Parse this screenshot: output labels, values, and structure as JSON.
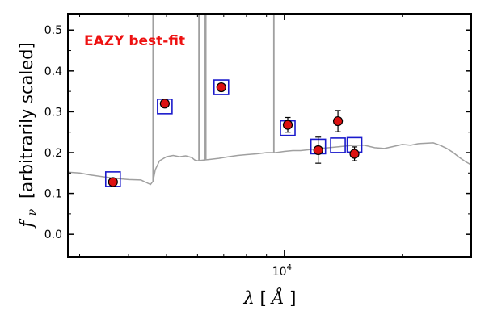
{
  "chart_data": {
    "type": "scatter",
    "title": "",
    "annotation": "EAZY best-fit",
    "annotation_color": "#ee1111",
    "xlabel": "λ [Å]",
    "xlabel_symbol": "λ",
    "xlabel_unit": "Å",
    "ylabel": "f_ν [arbitrarily scaled]",
    "ylabel_symbol": "f",
    "ylabel_subscript": "ν",
    "ylabel_text": "[arbitrarily scaled]",
    "xscale": "log",
    "xlim": [
      2800,
      30000
    ],
    "ylim": [
      -0.055,
      0.54
    ],
    "x_ticks": [
      {
        "value": 10000,
        "base": "10",
        "exp": "4"
      }
    ],
    "y_ticks": [
      0.0,
      0.1,
      0.2,
      0.3,
      0.4,
      0.5
    ],
    "y_tick_labels": [
      "0.0",
      "0.1",
      "0.2",
      "0.3",
      "0.4",
      "0.5"
    ],
    "grid": false,
    "colors": {
      "observed": "#dd1111",
      "model_box": "#1a1acc",
      "template": "#a0a0a0"
    },
    "series": [
      {
        "name": "template",
        "kind": "line",
        "x": [
          2800,
          3000,
          3200,
          3500,
          3700,
          4000,
          4300,
          4550,
          4620,
          4680,
          4800,
          5000,
          5200,
          5400,
          5600,
          5800,
          5900,
          6000,
          6400,
          6800,
          7200,
          7600,
          8000,
          8500,
          9000,
          9500,
          10000,
          10500,
          11000,
          11500,
          12000,
          13000,
          14000,
          15000,
          16000,
          17000,
          18000,
          19000,
          20000,
          21000,
          22000,
          23000,
          24000,
          25000,
          26000,
          27000,
          28000,
          29000,
          30000
        ],
        "y": [
          0.152,
          0.15,
          0.145,
          0.14,
          0.137,
          0.134,
          0.133,
          0.122,
          0.13,
          0.158,
          0.18,
          0.19,
          0.193,
          0.19,
          0.192,
          0.188,
          0.182,
          0.18,
          0.183,
          0.186,
          0.19,
          0.193,
          0.195,
          0.197,
          0.2,
          0.2,
          0.203,
          0.205,
          0.205,
          0.207,
          0.209,
          0.212,
          0.215,
          0.218,
          0.218,
          0.212,
          0.21,
          0.215,
          0.22,
          0.218,
          0.222,
          0.223,
          0.224,
          0.218,
          0.21,
          0.2,
          0.188,
          0.178,
          0.17
        ]
      },
      {
        "name": "emission_lines",
        "kind": "spikes",
        "lines": [
          {
            "x": 4620,
            "peak": 0.54
          },
          {
            "x": 6050,
            "peak": 0.54
          },
          {
            "x": 6250,
            "peak": 0.54
          },
          {
            "x": 6300,
            "peak": 0.54
          },
          {
            "x": 9400,
            "peak": 0.54
          }
        ]
      },
      {
        "name": "model_photometry",
        "kind": "open_square",
        "x": [
          3650,
          4950,
          6900,
          10200,
          12200,
          13700,
          15100
        ],
        "y": [
          0.135,
          0.313,
          0.36,
          0.26,
          0.215,
          0.218,
          0.219
        ]
      },
      {
        "name": "observed_photometry",
        "kind": "filled_circle",
        "x": [
          3650,
          4950,
          6900,
          10200,
          12200,
          13700,
          15100
        ],
        "y": [
          0.128,
          0.32,
          0.36,
          0.268,
          0.206,
          0.277,
          0.197
        ],
        "yerr": [
          0.004,
          0.005,
          0.005,
          0.018,
          0.032,
          0.026,
          0.017
        ]
      }
    ]
  }
}
